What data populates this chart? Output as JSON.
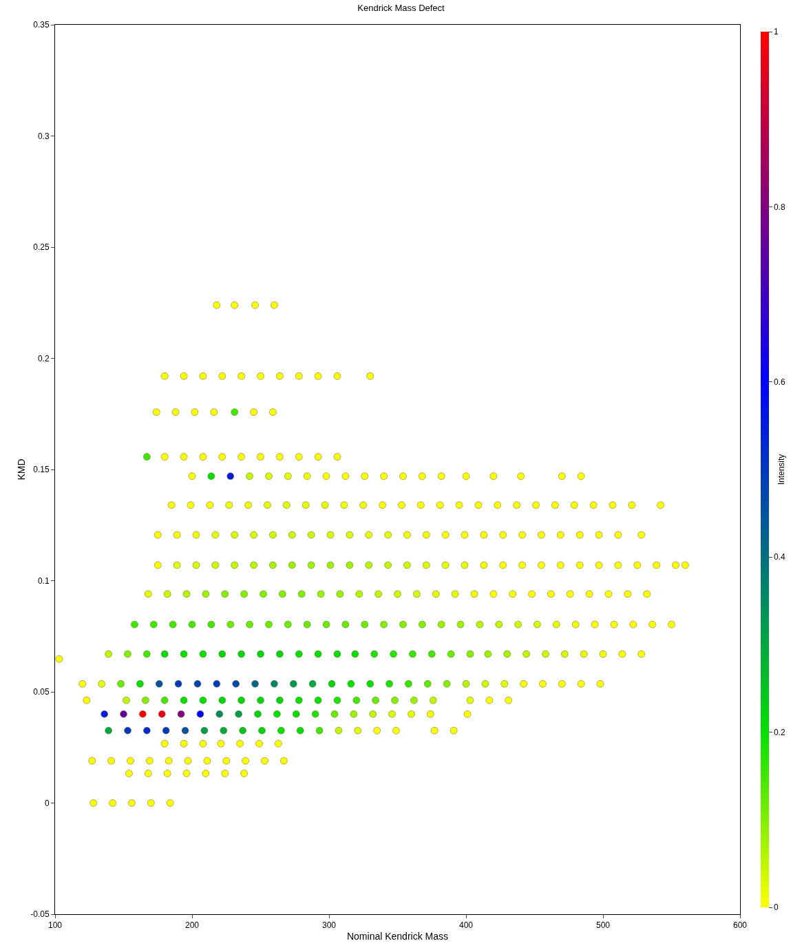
{
  "chart_data": {
    "type": "scatter",
    "title": "Kendrick Mass Defect",
    "xlabel": "Nominal Kendrick Mass",
    "ylabel": "KMD",
    "clabel": "Intensity",
    "xlim": [
      100,
      600
    ],
    "xticks": [
      100,
      200,
      300,
      400,
      500,
      600
    ],
    "ylim": [
      -0.05,
      0.35
    ],
    "yticks": [
      -0.05,
      0,
      0.05,
      0.1,
      0.15,
      0.2,
      0.25,
      0.3,
      0.35
    ],
    "clim": [
      0,
      1
    ],
    "cticks": [
      0,
      0.2,
      0.4,
      0.6,
      0.8,
      1
    ],
    "x": [
      128,
      142,
      156,
      170,
      184,
      154,
      168,
      182,
      196,
      210,
      224,
      238,
      127,
      141,
      155,
      169,
      183,
      197,
      211,
      225,
      239,
      253,
      267,
      180,
      194,
      208,
      221,
      235,
      249,
      263,
      139,
      153,
      167,
      181,
      195,
      209,
      223,
      237,
      251,
      265,
      279,
      293,
      307,
      321,
      335,
      349,
      377,
      391,
      136,
      150,
      164,
      178,
      192,
      206,
      220,
      234,
      248,
      262,
      276,
      290,
      304,
      318,
      332,
      346,
      360,
      374,
      401,
      123,
      152,
      166,
      180,
      194,
      208,
      222,
      236,
      250,
      264,
      278,
      292,
      306,
      320,
      334,
      348,
      362,
      376,
      403,
      417,
      431,
      120,
      134,
      148,
      162,
      176,
      190,
      204,
      218,
      232,
      246,
      260,
      274,
      288,
      302,
      316,
      330,
      344,
      358,
      372,
      386,
      400,
      414,
      428,
      442,
      456,
      470,
      484,
      498,
      103,
      139,
      153,
      167,
      180,
      194,
      208,
      222,
      236,
      250,
      264,
      278,
      292,
      306,
      319,
      333,
      347,
      361,
      375,
      389,
      403,
      416,
      430,
      444,
      458,
      472,
      486,
      500,
      514,
      528,
      158,
      172,
      186,
      200,
      214,
      228,
      242,
      256,
      270,
      284,
      298,
      312,
      326,
      340,
      354,
      368,
      382,
      396,
      410,
      424,
      438,
      452,
      466,
      480,
      494,
      508,
      522,
      536,
      550,
      168,
      182,
      196,
      210,
      224,
      238,
      252,
      266,
      280,
      294,
      308,
      322,
      336,
      350,
      364,
      378,
      392,
      406,
      420,
      434,
      448,
      462,
      476,
      490,
      504,
      518,
      532,
      175,
      189,
      203,
      217,
      231,
      245,
      259,
      273,
      287,
      301,
      315,
      329,
      343,
      357,
      371,
      385,
      399,
      413,
      427,
      441,
      455,
      469,
      483,
      497,
      511,
      525,
      539,
      553,
      560,
      175,
      189,
      203,
      217,
      231,
      245,
      259,
      273,
      287,
      301,
      315,
      329,
      343,
      357,
      371,
      385,
      399,
      413,
      427,
      441,
      455,
      469,
      483,
      497,
      511,
      528,
      185,
      199,
      213,
      227,
      241,
      255,
      269,
      283,
      297,
      311,
      325,
      339,
      353,
      367,
      381,
      395,
      409,
      423,
      437,
      451,
      465,
      479,
      493,
      507,
      521,
      542,
      200,
      214,
      228,
      242,
      256,
      270,
      284,
      298,
      312,
      326,
      340,
      354,
      368,
      382,
      400,
      420,
      440,
      470,
      484,
      167,
      180,
      194,
      208,
      222,
      236,
      250,
      264,
      278,
      292,
      306,
      174,
      188,
      202,
      216,
      231,
      245,
      259,
      180,
      194,
      208,
      222,
      236,
      250,
      264,
      278,
      292,
      306,
      330,
      218,
      231,
      246,
      260
    ],
    "values": [
      0,
      0,
      0,
      0,
      0,
      0.0133,
      0.0133,
      0.0133,
      0.0133,
      0.0133,
      0.0133,
      0.0133,
      0.019,
      0.019,
      0.019,
      0.019,
      0.019,
      0.019,
      0.019,
      0.019,
      0.019,
      0.019,
      0.019,
      0.0267,
      0.0267,
      0.0267,
      0.0267,
      0.0267,
      0.0267,
      0.0267,
      0.0326,
      0.0326,
      0.0326,
      0.0326,
      0.0326,
      0.0326,
      0.0326,
      0.0326,
      0.0326,
      0.0326,
      0.0326,
      0.0326,
      0.0326,
      0.0326,
      0.0326,
      0.0326,
      0.0326,
      0.0326,
      0.04,
      0.04,
      0.04,
      0.04,
      0.04,
      0.04,
      0.04,
      0.04,
      0.04,
      0.04,
      0.04,
      0.04,
      0.04,
      0.04,
      0.04,
      0.04,
      0.04,
      0.04,
      0.04,
      0.0462,
      0.0462,
      0.0462,
      0.0462,
      0.0462,
      0.0462,
      0.0462,
      0.0462,
      0.0462,
      0.0462,
      0.0462,
      0.0462,
      0.0462,
      0.0462,
      0.0462,
      0.0462,
      0.0462,
      0.0462,
      0.0462,
      0.0462,
      0.0462,
      0.0536,
      0.0536,
      0.0536,
      0.0536,
      0.0536,
      0.0536,
      0.0536,
      0.0536,
      0.0536,
      0.0536,
      0.0536,
      0.0536,
      0.0536,
      0.0536,
      0.0536,
      0.0536,
      0.0536,
      0.0536,
      0.0536,
      0.0536,
      0.0536,
      0.0536,
      0.0536,
      0.0536,
      0.0536,
      0.0536,
      0.0536,
      0.0536,
      0.0648,
      0.067,
      0.067,
      0.067,
      0.067,
      0.067,
      0.067,
      0.067,
      0.067,
      0.067,
      0.067,
      0.067,
      0.067,
      0.067,
      0.067,
      0.067,
      0.067,
      0.067,
      0.067,
      0.067,
      0.067,
      0.067,
      0.067,
      0.067,
      0.067,
      0.067,
      0.067,
      0.067,
      0.067,
      0.067,
      0.0803,
      0.0803,
      0.0803,
      0.0803,
      0.0803,
      0.0803,
      0.0803,
      0.0803,
      0.0803,
      0.0803,
      0.0803,
      0.0803,
      0.0803,
      0.0803,
      0.0803,
      0.0803,
      0.0803,
      0.0803,
      0.0803,
      0.0803,
      0.0803,
      0.0803,
      0.0803,
      0.0803,
      0.0803,
      0.0803,
      0.0803,
      0.0803,
      0.0803,
      0.094,
      0.094,
      0.094,
      0.094,
      0.094,
      0.094,
      0.094,
      0.094,
      0.094,
      0.094,
      0.094,
      0.094,
      0.094,
      0.094,
      0.094,
      0.094,
      0.094,
      0.094,
      0.094,
      0.094,
      0.094,
      0.094,
      0.094,
      0.094,
      0.094,
      0.094,
      0.094,
      0.107,
      0.107,
      0.107,
      0.107,
      0.107,
      0.107,
      0.107,
      0.107,
      0.107,
      0.107,
      0.107,
      0.107,
      0.107,
      0.107,
      0.107,
      0.107,
      0.107,
      0.107,
      0.107,
      0.107,
      0.107,
      0.107,
      0.107,
      0.107,
      0.107,
      0.107,
      0.107,
      0.107,
      0.107,
      0.1206,
      0.1206,
      0.1206,
      0.1206,
      0.1206,
      0.1206,
      0.1206,
      0.1206,
      0.1206,
      0.1206,
      0.1206,
      0.1206,
      0.1206,
      0.1206,
      0.1206,
      0.1206,
      0.1206,
      0.1206,
      0.1206,
      0.1206,
      0.1206,
      0.1206,
      0.1206,
      0.1206,
      0.1206,
      0.1206,
      0.134,
      0.134,
      0.134,
      0.134,
      0.134,
      0.134,
      0.134,
      0.134,
      0.134,
      0.134,
      0.134,
      0.134,
      0.134,
      0.134,
      0.134,
      0.134,
      0.134,
      0.134,
      0.134,
      0.134,
      0.134,
      0.134,
      0.134,
      0.134,
      0.134,
      0.134,
      0.147,
      0.147,
      0.147,
      0.147,
      0.147,
      0.147,
      0.147,
      0.147,
      0.147,
      0.147,
      0.147,
      0.147,
      0.147,
      0.147,
      0.147,
      0.147,
      0.147,
      0.147,
      0.147,
      0.1557,
      0.1557,
      0.1557,
      0.1557,
      0.1557,
      0.1557,
      0.1557,
      0.1557,
      0.1557,
      0.1557,
      0.1557,
      0.1758,
      0.1758,
      0.1758,
      0.1758,
      0.1758,
      0.1758,
      0.1758,
      0.192,
      0.192,
      0.192,
      0.192,
      0.192,
      0.192,
      0.192,
      0.192,
      0.192,
      0.192,
      0.192,
      0.2239,
      0.2239,
      0.2239,
      0.2239
    ],
    "cvalues": [
      0,
      0,
      0,
      0,
      0,
      0,
      0,
      0,
      0,
      0,
      0,
      0,
      0,
      0,
      0,
      0,
      0,
      0,
      0,
      0,
      0,
      0,
      0,
      0,
      0,
      0,
      0,
      0,
      0,
      0,
      0.3,
      0.5,
      0.52,
      0.5,
      0.45,
      0.32,
      0.3,
      0.25,
      0.22,
      0.2,
      0.2,
      0.15,
      0.05,
      0.02,
      0,
      0,
      0,
      0,
      0.55,
      0.75,
      1,
      0.97,
      0.8,
      0.6,
      0.35,
      0.32,
      0.22,
      0.2,
      0.2,
      0.18,
      0.12,
      0.08,
      0.05,
      0.03,
      0.02,
      0.01,
      0,
      0,
      0.05,
      0.1,
      0.15,
      0.2,
      0.2,
      0.22,
      0.22,
      0.22,
      0.22,
      0.2,
      0.2,
      0.18,
      0.15,
      0.12,
      0.1,
      0.08,
      0.05,
      0.02,
      0,
      0,
      0,
      0.02,
      0.12,
      0.2,
      0.45,
      0.5,
      0.48,
      0.5,
      0.47,
      0.42,
      0.36,
      0.33,
      0.3,
      0.22,
      0.2,
      0.2,
      0.18,
      0.16,
      0.13,
      0.1,
      0.06,
      0.04,
      0.02,
      0,
      0,
      0,
      0,
      0,
      0,
      0.05,
      0.1,
      0.15,
      0.2,
      0.2,
      0.2,
      0.22,
      0.22,
      0.22,
      0.22,
      0.2,
      0.2,
      0.2,
      0.2,
      0.18,
      0.17,
      0.16,
      0.15,
      0.12,
      0.1,
      0.08,
      0.07,
      0.05,
      0.04,
      0.03,
      0.02,
      0.01,
      0,
      0,
      0.15,
      0.15,
      0.15,
      0.15,
      0.15,
      0.12,
      0.12,
      0.12,
      0.12,
      0.12,
      0.12,
      0.12,
      0.12,
      0.1,
      0.1,
      0.1,
      0.08,
      0.08,
      0.06,
      0.05,
      0.04,
      0.03,
      0.02,
      0.01,
      0,
      0,
      0,
      0,
      0,
      0.02,
      0.04,
      0.06,
      0.08,
      0.1,
      0.1,
      0.1,
      0.1,
      0.1,
      0.08,
      0.08,
      0.06,
      0.05,
      0.04,
      0.03,
      0.02,
      0.02,
      0.01,
      0,
      0,
      0,
      0,
      0,
      0,
      0,
      0,
      0,
      0,
      0.02,
      0.03,
      0.04,
      0.05,
      0.06,
      0.07,
      0.08,
      0.08,
      0.08,
      0.08,
      0.06,
      0.05,
      0.04,
      0.03,
      0.02,
      0.02,
      0.01,
      0,
      0,
      0,
      0,
      0,
      0,
      0,
      0,
      0,
      0,
      0,
      0,
      0,
      0.01,
      0.02,
      0.03,
      0.03,
      0.04,
      0.04,
      0.04,
      0.03,
      0.03,
      0.02,
      0.02,
      0.01,
      0.01,
      0,
      0,
      0,
      0,
      0,
      0,
      0,
      0,
      0,
      0,
      0,
      0,
      0,
      0,
      0.01,
      0.01,
      0.02,
      0.02,
      0.02,
      0.02,
      0.01,
      0.01,
      0,
      0,
      0,
      0,
      0,
      0,
      0,
      0,
      0,
      0,
      0,
      0,
      0,
      0,
      0,
      0,
      0.2,
      0.55,
      0.05,
      0.03,
      0.02,
      0.01,
      0,
      0,
      0,
      0,
      0,
      0,
      0,
      0,
      0,
      0,
      0,
      0,
      0.15,
      0,
      0,
      0,
      0,
      0,
      0,
      0,
      0,
      0,
      0,
      0,
      0,
      0,
      0,
      0.15,
      0,
      0,
      0,
      0,
      0,
      0,
      0,
      0,
      0,
      0,
      0,
      0,
      0,
      0,
      0,
      0,
      0
    ]
  }
}
